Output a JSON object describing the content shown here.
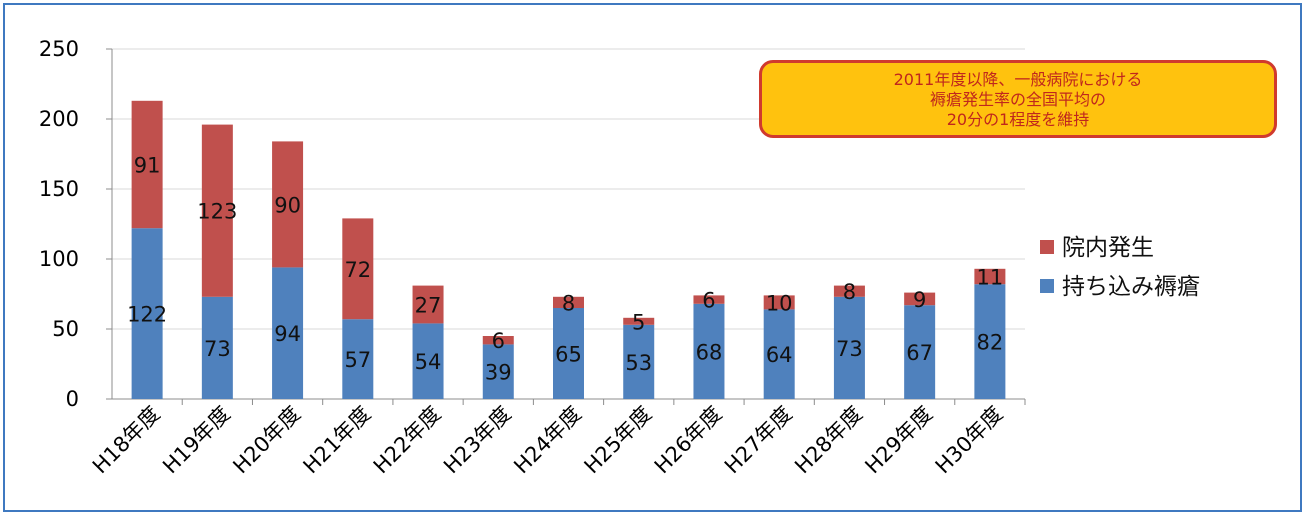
{
  "chart_data": {
    "type": "bar",
    "stacked": true,
    "categories": [
      "H18年度",
      "H19年度",
      "H20年度",
      "H21年度",
      "H22年度",
      "H23年度",
      "H24年度",
      "H25年度",
      "H26年度",
      "H27年度",
      "H28年度",
      "H29年度",
      "H30年度"
    ],
    "series": [
      {
        "name": "持ち込み褥瘡",
        "color": "#4f81bd",
        "values": [
          122,
          73,
          94,
          57,
          54,
          39,
          65,
          53,
          68,
          64,
          73,
          67,
          82
        ]
      },
      {
        "name": "院内発生",
        "color": "#c0504d",
        "values": [
          91,
          123,
          90,
          72,
          27,
          6,
          8,
          5,
          6,
          10,
          8,
          9,
          11
        ]
      }
    ],
    "ylim": [
      0,
      250
    ],
    "yticks": [
      0,
      50,
      100,
      150,
      200,
      250
    ],
    "grid": true,
    "legend_position": "right",
    "legend_order": [
      "院内発生",
      "持ち込み褥瘡"
    ]
  },
  "annotation": {
    "lines": [
      "2011年度以降、一般病院における",
      "褥瘡発生率の全国平均の",
      "20分の1程度を維持"
    ]
  }
}
